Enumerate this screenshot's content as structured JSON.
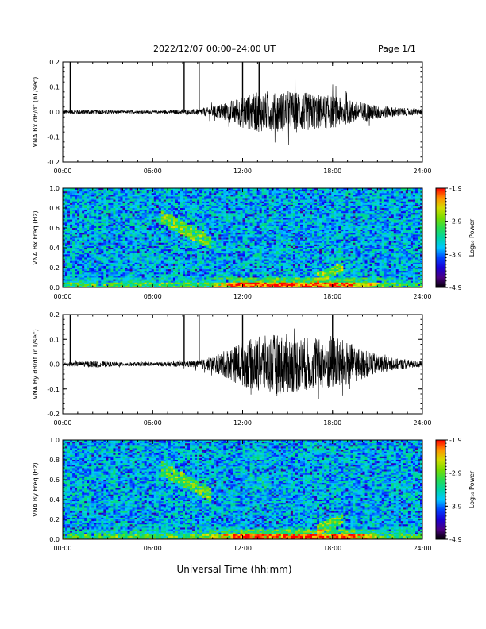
{
  "header": {
    "title": "2022/12/07  00:00–24:00 UT",
    "page_label": "Page 1/1"
  },
  "chart_data": [
    {
      "type": "line",
      "id": "bx-waveform",
      "ylabel": "VNA Bx dB/dt (nT/sec)",
      "xlim": [
        0,
        24
      ],
      "ylim": [
        -0.2,
        0.2
      ],
      "xticks": [
        "00:00",
        "06:00",
        "12:00",
        "18:00",
        "24:00"
      ],
      "yticks": [
        "0.2",
        "0.1",
        "0.0",
        "-0.1",
        "-0.2"
      ],
      "spikes_hours": [
        0.5,
        8.1,
        9.1,
        12.0,
        13.1
      ],
      "envelope": {
        "x_hours": [
          0,
          2,
          4,
          6,
          8,
          9,
          10,
          11,
          12,
          13,
          14,
          15,
          16,
          17,
          18,
          19,
          20,
          21,
          22,
          23,
          24
        ],
        "amplitude": [
          0.008,
          0.01,
          0.006,
          0.006,
          0.008,
          0.012,
          0.022,
          0.04,
          0.065,
          0.08,
          0.075,
          0.085,
          0.08,
          0.07,
          0.065,
          0.05,
          0.04,
          0.03,
          0.02,
          0.015,
          0.012
        ]
      }
    },
    {
      "type": "heatmap",
      "id": "bx-spectrogram",
      "ylabel": "VNA Bx Freq (Hz)",
      "xlim": [
        0,
        24
      ],
      "ylim": [
        0.0,
        1.0
      ],
      "xticks": [
        "00:00",
        "06:00",
        "12:00",
        "18:00",
        "24:00"
      ],
      "yticks": [
        "1.0",
        "0.8",
        "0.6",
        "0.4",
        "0.2",
        "0.0"
      ],
      "colorbar": {
        "label": "Log₁₀ Power",
        "range": [
          -4.9,
          -1.9
        ],
        "ticks": [
          "-1.9",
          "-2.9",
          "-3.9",
          "-4.9"
        ]
      }
    },
    {
      "type": "line",
      "id": "by-waveform",
      "ylabel": "VNA By dB/dt (nT/sec)",
      "xlim": [
        0,
        24
      ],
      "ylim": [
        -0.2,
        0.2
      ],
      "xticks": [
        "00:00",
        "06:00",
        "12:00",
        "18:00",
        "24:00"
      ],
      "yticks": [
        "0.2",
        "0.1",
        "0.0",
        "-0.1",
        "-0.2"
      ],
      "spikes_hours": [
        0.5,
        8.1,
        9.1,
        12.0,
        18.0
      ],
      "envelope": {
        "x_hours": [
          0,
          2,
          4,
          6,
          8,
          9,
          10,
          11,
          12,
          13,
          14,
          15,
          16,
          17,
          18,
          19,
          20,
          21,
          22,
          23,
          24
        ],
        "amplitude": [
          0.008,
          0.012,
          0.008,
          0.008,
          0.01,
          0.015,
          0.03,
          0.06,
          0.09,
          0.11,
          0.12,
          0.12,
          0.11,
          0.1,
          0.12,
          0.09,
          0.06,
          0.04,
          0.025,
          0.018,
          0.012
        ]
      }
    },
    {
      "type": "heatmap",
      "id": "by-spectrogram",
      "ylabel": "VNA By Freq (Hz)",
      "xlim": [
        0,
        24
      ],
      "ylim": [
        0.0,
        1.0
      ],
      "xticks": [
        "00:00",
        "06:00",
        "12:00",
        "18:00",
        "24:00"
      ],
      "yticks": [
        "1.0",
        "0.8",
        "0.6",
        "0.4",
        "0.2",
        "0.0"
      ],
      "colorbar": {
        "label": "Log₁₀ Power",
        "range": [
          -4.9,
          -1.9
        ],
        "ticks": [
          "-1.9",
          "-2.9",
          "-3.9",
          "-4.9"
        ]
      }
    }
  ],
  "xaxis_label": "Universal Time (hh:mm)"
}
